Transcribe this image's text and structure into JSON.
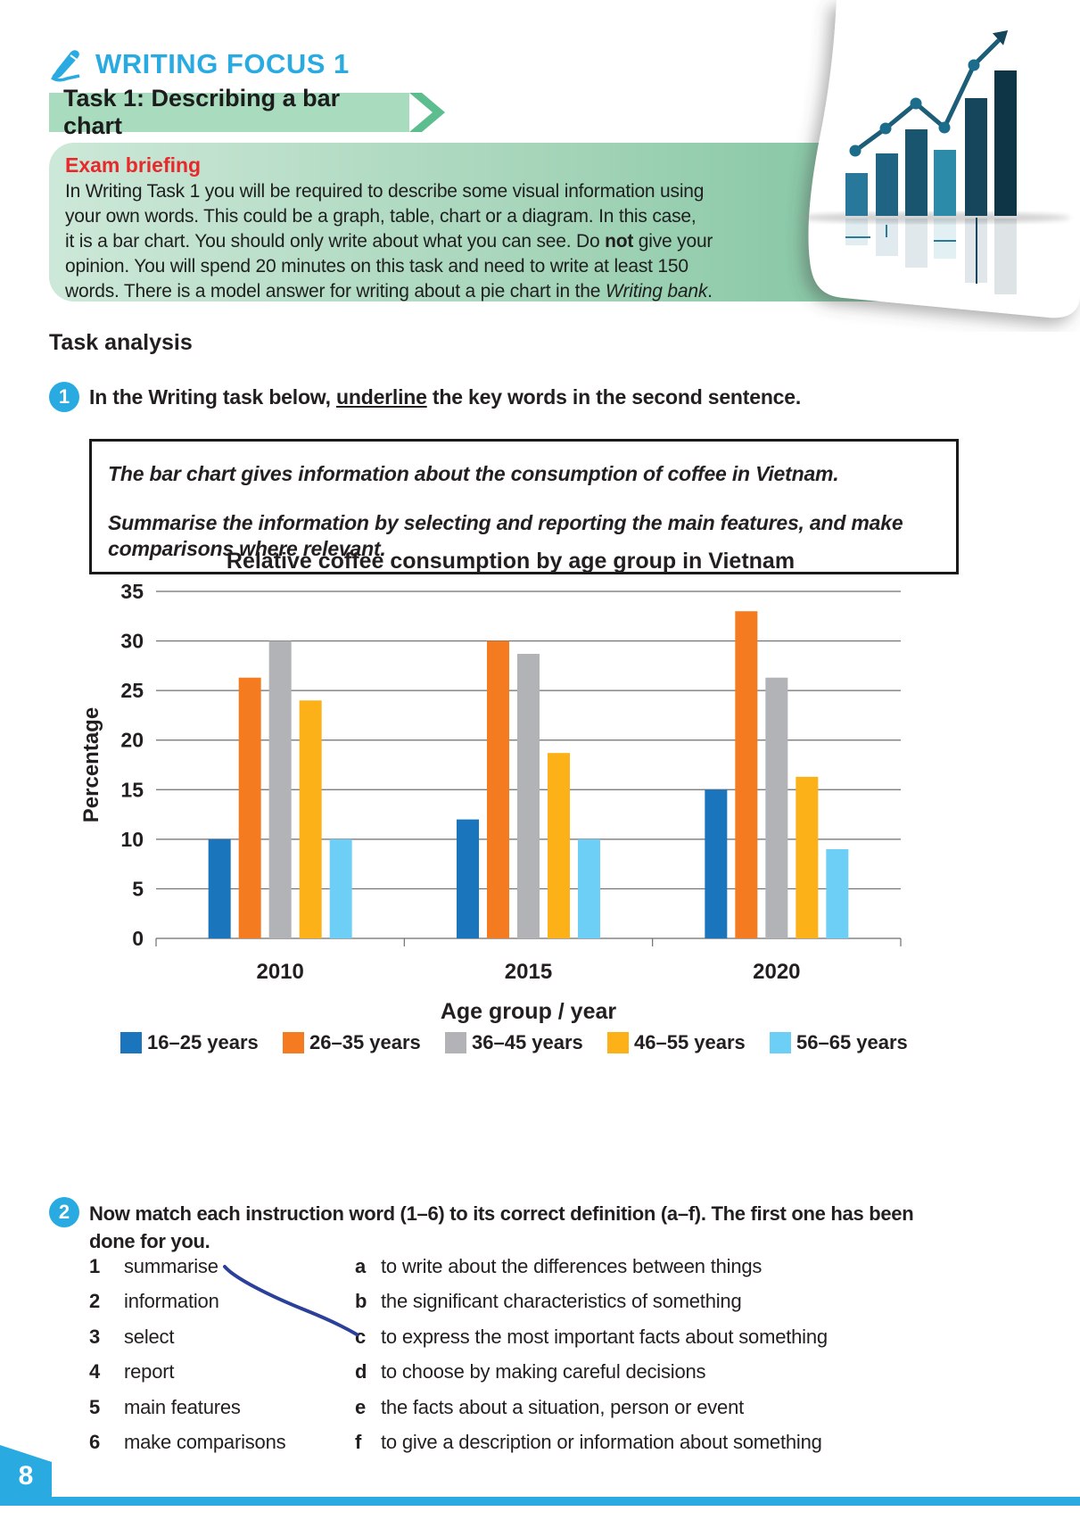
{
  "header": {
    "brand": "WRITING FOCUS 1",
    "banner": "Task 1: Describing a bar chart"
  },
  "briefing": {
    "title": "Exam briefing",
    "segments": [
      {
        "t": "In Writing Task 1 you will be required to describe some visual information using\nyour own words. This could be a graph, table, chart or a diagram. In this case,\nit is a bar chart. You should only write about what you can see. Do "
      },
      {
        "t": "not",
        "b": true
      },
      {
        "t": " give your\nopinion. You will spend 20 minutes on this task and need to write at least 150\nwords. There is a model answer for writing about a pie chart in the "
      },
      {
        "t": "Writing bank",
        "i": true
      },
      {
        "t": "."
      }
    ]
  },
  "sections": {
    "task_analysis": "Task analysis"
  },
  "exercise1": {
    "number": "1",
    "segments": [
      {
        "t": "In the Writing task below, "
      },
      {
        "t": "underline",
        "u": true
      },
      {
        "t": " the key words in the second sentence."
      }
    ]
  },
  "task_box": {
    "para1": "The bar chart gives information about the consumption of coffee in Vietnam.",
    "para2": "Summarise the information by selecting and reporting the main features, and make\ncomparisons where relevant."
  },
  "chart_data": {
    "type": "bar",
    "title": "Relative coffee consumption by age group in Vietnam",
    "ylabel": "Percentage",
    "xlabel": "Age group / year",
    "categories": [
      "2010",
      "2015",
      "2020"
    ],
    "ylim": [
      0,
      35
    ],
    "ytick_step": 5,
    "grid": true,
    "legend_position": "bottom",
    "series": [
      {
        "name": "16–25 years",
        "color": "#1b75bc",
        "values": [
          10,
          12,
          15
        ]
      },
      {
        "name": "26–35 years",
        "color": "#f47b20",
        "values": [
          26.3,
          30,
          33
        ]
      },
      {
        "name": "36–45 years",
        "color": "#b1b3b6",
        "values": [
          30,
          28.7,
          26.3
        ]
      },
      {
        "name": "46–55 years",
        "color": "#fbb117",
        "values": [
          24,
          18.7,
          16.3
        ]
      },
      {
        "name": "56–65 years",
        "color": "#6dcff6",
        "values": [
          10,
          10,
          9
        ]
      }
    ]
  },
  "exercise2": {
    "number": "2",
    "text": "Now match each instruction word (1–6) to its correct definition (a–f). The first one has been\ndone for you."
  },
  "match": {
    "rows": [
      {
        "num": "1",
        "word": "summarise",
        "letter": "a",
        "def": "to write about the differences between things"
      },
      {
        "num": "2",
        "word": "information",
        "letter": "b",
        "def": "the significant characteristics of something"
      },
      {
        "num": "3",
        "word": "select",
        "letter": "c",
        "def": "to express the most important facts about something"
      },
      {
        "num": "4",
        "word": "report",
        "letter": "d",
        "def": "to choose by making careful decisions"
      },
      {
        "num": "5",
        "word": "main features",
        "letter": "e",
        "def": "the facts about a situation, person or event"
      },
      {
        "num": "6",
        "word": "make comparisons",
        "letter": "f",
        "def": "to give a description or information about something"
      }
    ],
    "given_answer": {
      "word_number": "1",
      "definition_letter": "c"
    }
  },
  "footer": {
    "page_number": "8"
  },
  "colors": {
    "accent_cyan": "#29ABE2",
    "banner_green": "#A9DCBE",
    "chevron_green": "#5CBE8E",
    "briefing_gradient": [
      "#CDE8D8",
      "#73BF99"
    ],
    "heading_red": "#E8282B",
    "connector_navy": "#2B4099",
    "text": "#231F20"
  }
}
